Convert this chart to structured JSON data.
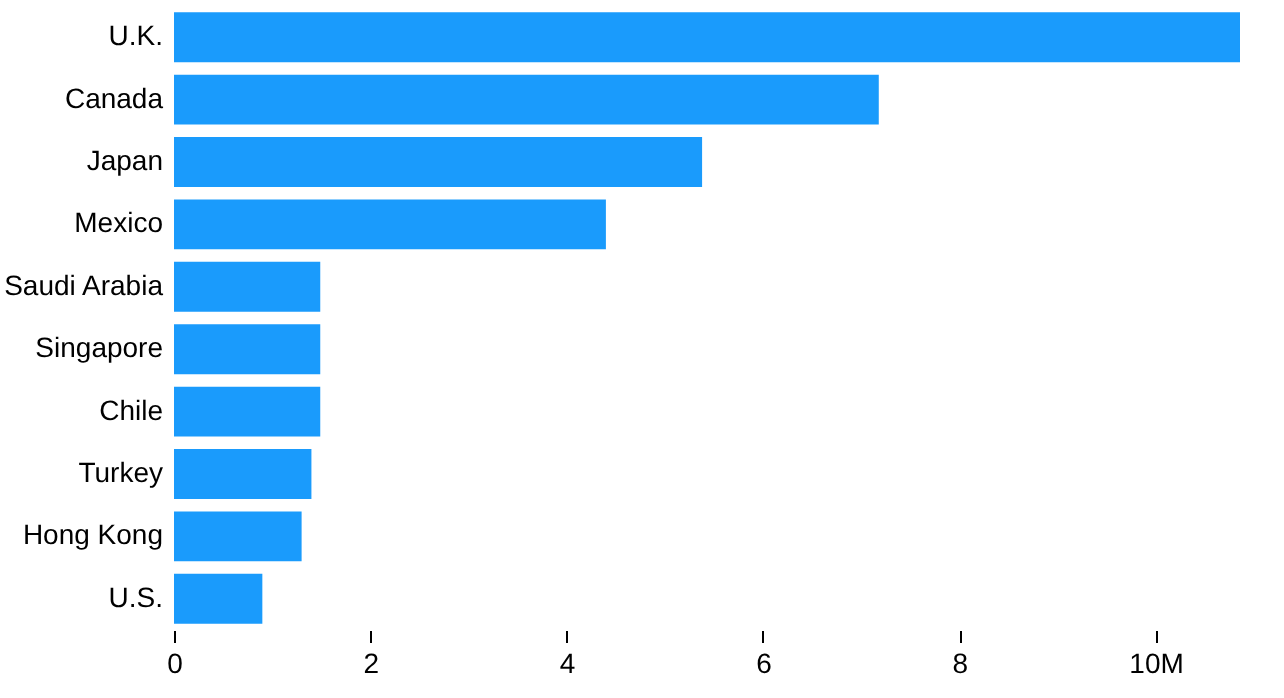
{
  "chart_data": {
    "type": "bar",
    "orientation": "horizontal",
    "categories": [
      "U.K.",
      "Canada",
      "Japan",
      "Mexico",
      "Saudi Arabia",
      "Singapore",
      "Chile",
      "Turkey",
      "Hong Kong",
      "U.S."
    ],
    "values": [
      10.86,
      7.18,
      5.38,
      4.4,
      1.49,
      1.49,
      1.49,
      1.4,
      1.3,
      0.9
    ],
    "color": "#1a9bfc",
    "xlim": [
      0,
      10.86
    ],
    "xticks": [
      0,
      2,
      4,
      6,
      8,
      {
        "value": 10,
        "label": "10M"
      }
    ],
    "grid": false
  }
}
